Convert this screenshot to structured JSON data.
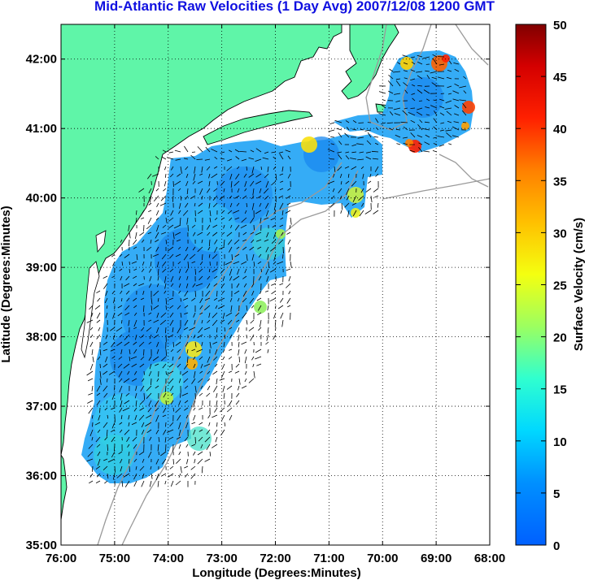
{
  "title": "Mid-Atlantic Raw Velocities (1 Day Avg) 2007/12/08 1200 GMT",
  "xlabel": "Longitude (Degrees:Minutes)",
  "ylabel": "Latitude (Degrees:Minutes)",
  "x_ticks": [
    "76:00",
    "75:00",
    "74:00",
    "73:00",
    "72:00",
    "71:00",
    "70:00",
    "69:00",
    "68:00"
  ],
  "y_ticks": [
    "42:00",
    "41:00",
    "40:00",
    "39:00",
    "38:00",
    "37:00",
    "36:00",
    "35:00"
  ],
  "colorbar": {
    "label": "Surface Velocity (cm/s)",
    "ticks": [
      "50",
      "45",
      "40",
      "35",
      "30",
      "25",
      "20",
      "15",
      "10",
      "5",
      "0"
    ],
    "range": [
      0,
      50
    ]
  },
  "colors": {
    "land": "#5ff5a8",
    "title": "#1010e0",
    "ocean_field": "#2aa8f5",
    "grid": "#000000",
    "bathymetry": "#9a9a9a"
  },
  "map": {
    "lon_range": [
      -76,
      -68
    ],
    "lat_range": [
      35,
      42.5
    ],
    "grid": true
  }
}
